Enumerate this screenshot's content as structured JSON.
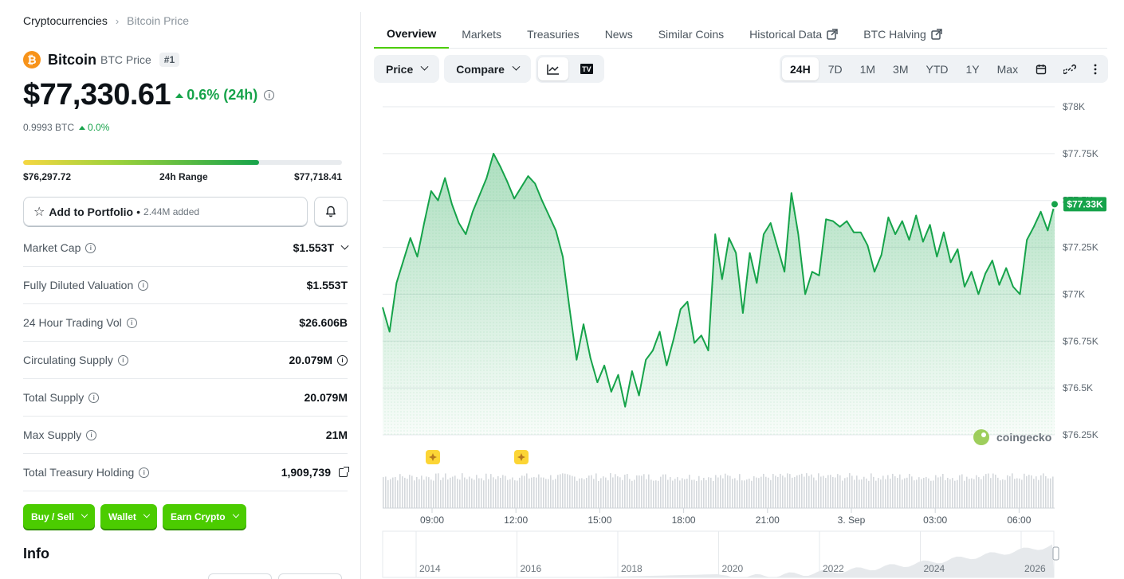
{
  "breadcrumb": {
    "root": "Cryptocurrencies",
    "current": "Bitcoin Price"
  },
  "coin": {
    "logo_letter": "₿",
    "name": "Bitcoin",
    "symbol_label": "BTC Price",
    "rank": "#1",
    "logo_color": "#f7931a"
  },
  "price": {
    "usd": "$77,330.61",
    "change": "0.6% (24h)",
    "btc": "0.9993 BTC",
    "btc_change": "0.0%"
  },
  "range": {
    "low": "$76,297.72",
    "label": "24h Range",
    "high": "$77,718.41",
    "position": 0.74
  },
  "portfolio": {
    "label": "Add to Portfolio",
    "added": "2.44M added"
  },
  "stats": [
    {
      "key": "Market Cap",
      "value": "$1.553T"
    },
    {
      "key": "Fully Diluted Valuation",
      "value": "$1.553T"
    },
    {
      "key": "24 Hour Trading Vol",
      "value": "$26.606B"
    },
    {
      "key": "Circulating Supply",
      "value": "20.079M"
    },
    {
      "key": "Total Supply",
      "value": "20.079M"
    },
    {
      "key": "Max Supply",
      "value": "21M"
    },
    {
      "key": "Total Treasury Holding",
      "value": "1,909,739"
    }
  ],
  "actions": {
    "buy_sell": "Buy / Sell",
    "wallet": "Wallet",
    "earn": "Earn Crypto"
  },
  "info_heading": "Info",
  "tabs": [
    "Overview",
    "Markets",
    "Treasuries",
    "News",
    "Similar Coins",
    "Historical Data",
    "BTC Halving"
  ],
  "toolbar": {
    "price": "Price",
    "compare": "Compare",
    "tv": "TV"
  },
  "ranges": [
    "24H",
    "7D",
    "1M",
    "3M",
    "YTD",
    "1Y",
    "Max"
  ],
  "colors": {
    "accent": "#4bcc00",
    "up": "#16a34a",
    "line": "#16a34a"
  },
  "chart_data": {
    "type": "line",
    "y_ticks": [
      "$78K",
      "$77.75K",
      "$77.5K",
      "$77.25K",
      "$77K",
      "$76.75K",
      "$76.5K",
      "$76.25K"
    ],
    "ylim": [
      76250,
      78000
    ],
    "x_ticks": [
      "09:00",
      "12:00",
      "15:00",
      "18:00",
      "21:00",
      "3. Sep",
      "03:00",
      "06:00"
    ],
    "current_label": "$77.33K",
    "watermark": "coingecko",
    "overview_ticks": [
      "2014",
      "2016",
      "2018",
      "2020",
      "2022",
      "2024",
      "2026"
    ],
    "series": [
      {
        "values": [
          76930,
          76800,
          77060,
          77180,
          77300,
          77200,
          77380,
          77550,
          77500,
          77620,
          77480,
          77380,
          77320,
          77440,
          77530,
          77620,
          77750,
          77680,
          77600,
          77510,
          77570,
          77630,
          77590,
          77500,
          77420,
          77340,
          77200,
          76920,
          76650,
          76840,
          76660,
          76530,
          76620,
          76480,
          76570,
          76400,
          76590,
          76460,
          76650,
          76700,
          76800,
          76620,
          76760,
          76920,
          76960,
          76740,
          76780,
          76700,
          77320,
          77080,
          77300,
          77220,
          76900,
          77220,
          77060,
          77320,
          77380,
          77250,
          77120,
          77540,
          77320,
          77000,
          77120,
          77100,
          77400,
          77390,
          77360,
          77390,
          77330,
          77330,
          77260,
          77120,
          77210,
          77410,
          77320,
          77390,
          77290,
          77420,
          77280,
          77370,
          77200,
          77330,
          77170,
          77240,
          77040,
          77120,
          77000,
          77110,
          77180,
          77050,
          77140,
          77040,
          77000,
          77290,
          77360,
          77440,
          77340,
          77480
        ]
      }
    ]
  }
}
